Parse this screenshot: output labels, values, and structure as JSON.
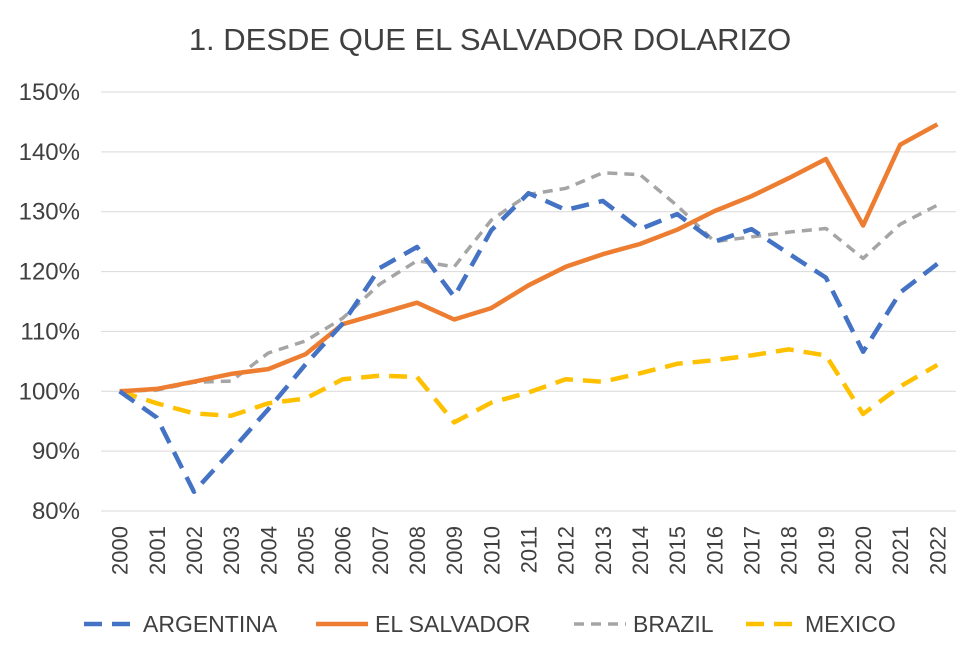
{
  "chart_data": {
    "type": "line",
    "title": "1. DESDE QUE EL SALVADOR DOLARIZO",
    "xlabel": "",
    "ylabel": "",
    "ylim": [
      80,
      150
    ],
    "y_tick_values": [
      80,
      90,
      100,
      110,
      120,
      130,
      140,
      150
    ],
    "y_tick_labels": [
      "80%",
      "90%",
      "100%",
      "110%",
      "120%",
      "130%",
      "140%",
      "150%"
    ],
    "x": [
      "2000",
      "2001",
      "2002",
      "2003",
      "2004",
      "2005",
      "2006",
      "2007",
      "2008",
      "2009",
      "2010",
      "2011",
      "2012",
      "2013",
      "2014",
      "2015",
      "2016",
      "2017",
      "2018",
      "2019",
      "2020",
      "2021",
      "2022"
    ],
    "grid": "horizontal",
    "legend_position": "bottom",
    "series": [
      {
        "name": "ARGENTINA",
        "color": "#4472c4",
        "dash": "long-dash",
        "values": [
          100,
          95.6,
          83.2,
          90.0,
          97.0,
          104.5,
          111.3,
          120.6,
          124.1,
          115.8,
          126.9,
          133.1,
          130.3,
          131.8,
          127.1,
          129.6,
          125.0,
          127.1,
          123.0,
          119.0,
          106.6,
          116.5,
          121.3
        ]
      },
      {
        "name": "EL SALVADOR",
        "color": "#ed7d31",
        "dash": "solid",
        "values": [
          100,
          100.4,
          101.6,
          102.9,
          103.7,
          106.2,
          111.2,
          113.0,
          114.8,
          112.0,
          113.9,
          117.7,
          120.8,
          122.9,
          124.6,
          127.0,
          130.1,
          132.6,
          135.6,
          138.8,
          127.7,
          141.2,
          144.6
        ]
      },
      {
        "name": "BRAZIL",
        "color": "#a5a5a5",
        "dash": "short-dash",
        "values": [
          100,
          100.2,
          101.5,
          101.7,
          106.4,
          108.4,
          112.2,
          117.9,
          121.8,
          120.8,
          128.6,
          132.9,
          133.9,
          136.5,
          136.2,
          131.0,
          125.0,
          125.8,
          126.6,
          127.2,
          122.2,
          127.9,
          131.1
        ]
      },
      {
        "name": "MEXICO",
        "color": "#ffc000",
        "dash": "long-dash",
        "values": [
          100,
          98.0,
          96.3,
          95.9,
          98.0,
          98.8,
          102.0,
          102.6,
          102.4,
          94.8,
          98.1,
          99.8,
          102.0,
          101.6,
          103.0,
          104.6,
          105.2,
          106.0,
          107.0,
          106.0,
          96.2,
          100.8,
          104.4
        ]
      }
    ]
  }
}
